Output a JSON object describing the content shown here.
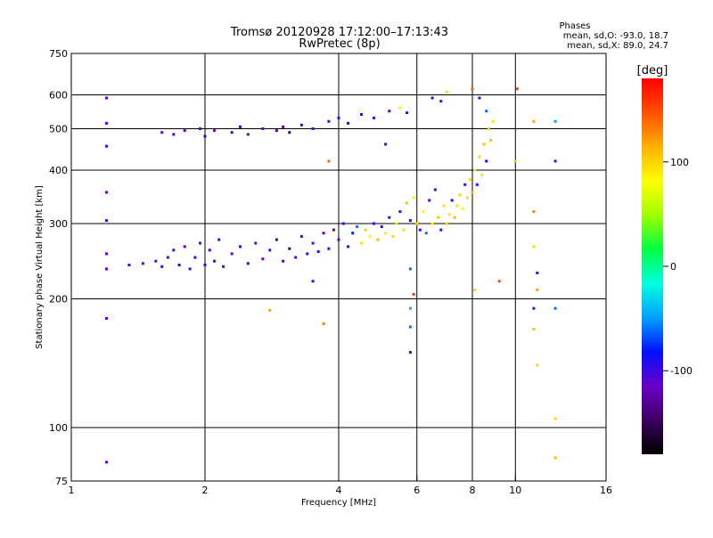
{
  "chart_data": {
    "type": "scatter",
    "title": "Tromsø 20120928 17:12:00–17:13:43",
    "subtitle": "RwPretec (8p)",
    "xlabel": "Frequency [MHz]",
    "ylabel": "Stationary phase Virtual Height [km]",
    "x_scale": "log2",
    "y_scale": "log",
    "xlim": [
      1,
      16
    ],
    "ylim": [
      75,
      750
    ],
    "x_ticks": [
      1,
      2,
      4,
      6,
      8,
      10,
      16
    ],
    "x_tick_labels": [
      "1",
      "2",
      "4",
      "6",
      "8",
      "10",
      "16"
    ],
    "y_ticks": [
      75,
      100,
      200,
      300,
      400,
      500,
      600,
      750
    ],
    "y_tick_labels": [
      "75",
      "100",
      "200",
      "300",
      "400",
      "500",
      "600",
      "750"
    ],
    "grid": true,
    "phases_box": {
      "title": "Phases",
      "line_o": "mean, sd,O:  -93.0,  18.7",
      "line_x": "mean, sd,X:   89.0,  24.7"
    },
    "colorbar": {
      "label": "[deg]",
      "range": [
        -180,
        180
      ],
      "ticks": [
        100,
        0,
        -100
      ],
      "tick_labels": [
        "100",
        "0",
        "-100"
      ],
      "colors": [
        "#000000",
        "#3b0060",
        "#6a00c8",
        "#0010ff",
        "#00a0ff",
        "#00ffe0",
        "#00ff40",
        "#a0ff00",
        "#ffff00",
        "#ffb000",
        "#ff5000",
        "#ff0000"
      ]
    },
    "series": [
      {
        "values": [
          {
            "x": 1.2,
            "y": 590,
            "p": -110
          },
          {
            "x": 1.2,
            "y": 515,
            "p": -105
          },
          {
            "x": 1.2,
            "y": 455,
            "p": -100
          },
          {
            "x": 1.2,
            "y": 355,
            "p": -110
          },
          {
            "x": 1.2,
            "y": 305,
            "p": -100
          },
          {
            "x": 1.2,
            "y": 255,
            "p": -110
          },
          {
            "x": 1.2,
            "y": 235,
            "p": -105
          },
          {
            "x": 1.2,
            "y": 180,
            "p": -110
          },
          {
            "x": 1.2,
            "y": 83,
            "p": -105
          },
          {
            "x": 1.35,
            "y": 240,
            "p": -100
          },
          {
            "x": 1.45,
            "y": 242,
            "p": -115
          },
          {
            "x": 1.55,
            "y": 245,
            "p": -110
          },
          {
            "x": 1.6,
            "y": 238,
            "p": -90
          },
          {
            "x": 1.65,
            "y": 250,
            "p": -120
          },
          {
            "x": 1.7,
            "y": 260,
            "p": -100
          },
          {
            "x": 1.75,
            "y": 240,
            "p": -95
          },
          {
            "x": 1.8,
            "y": 265,
            "p": -115
          },
          {
            "x": 1.85,
            "y": 235,
            "p": -105
          },
          {
            "x": 1.9,
            "y": 250,
            "p": -90
          },
          {
            "x": 1.95,
            "y": 270,
            "p": -110
          },
          {
            "x": 2.0,
            "y": 240,
            "p": -100
          },
          {
            "x": 2.05,
            "y": 260,
            "p": -120
          },
          {
            "x": 2.1,
            "y": 245,
            "p": -90
          },
          {
            "x": 2.15,
            "y": 275,
            "p": -105
          },
          {
            "x": 2.2,
            "y": 238,
            "p": -110
          },
          {
            "x": 2.3,
            "y": 255,
            "p": -115
          },
          {
            "x": 2.4,
            "y": 265,
            "p": -100
          },
          {
            "x": 2.5,
            "y": 242,
            "p": -95
          },
          {
            "x": 2.6,
            "y": 270,
            "p": -110
          },
          {
            "x": 2.7,
            "y": 248,
            "p": -120
          },
          {
            "x": 2.8,
            "y": 260,
            "p": -105
          },
          {
            "x": 2.9,
            "y": 275,
            "p": -90
          },
          {
            "x": 3.0,
            "y": 245,
            "p": -130
          },
          {
            "x": 3.1,
            "y": 262,
            "p": -140
          },
          {
            "x": 3.2,
            "y": 250,
            "p": -110
          },
          {
            "x": 3.3,
            "y": 280,
            "p": -100
          },
          {
            "x": 3.4,
            "y": 255,
            "p": -120
          },
          {
            "x": 3.5,
            "y": 270,
            "p": -105
          },
          {
            "x": 3.6,
            "y": 258,
            "p": -95
          },
          {
            "x": 3.7,
            "y": 285,
            "p": -110
          },
          {
            "x": 3.8,
            "y": 262,
            "p": -100
          },
          {
            "x": 3.9,
            "y": 290,
            "p": -115
          },
          {
            "x": 4.0,
            "y": 275,
            "p": -105
          },
          {
            "x": 4.1,
            "y": 300,
            "p": -110
          },
          {
            "x": 4.2,
            "y": 265,
            "p": -90
          },
          {
            "x": 4.3,
            "y": 285,
            "p": -80
          },
          {
            "x": 4.4,
            "y": 295,
            "p": -60
          },
          {
            "x": 4.5,
            "y": 270,
            "p": 95
          },
          {
            "x": 4.6,
            "y": 290,
            "p": 100
          },
          {
            "x": 4.7,
            "y": 280,
            "p": 85
          },
          {
            "x": 4.8,
            "y": 300,
            "p": -100
          },
          {
            "x": 4.9,
            "y": 275,
            "p": 110
          },
          {
            "x": 5.0,
            "y": 295,
            "p": -90
          },
          {
            "x": 5.1,
            "y": 285,
            "p": 90
          },
          {
            "x": 5.2,
            "y": 310,
            "p": -110
          },
          {
            "x": 5.3,
            "y": 280,
            "p": 100
          },
          {
            "x": 5.4,
            "y": 300,
            "p": 70
          },
          {
            "x": 5.5,
            "y": 320,
            "p": -100
          },
          {
            "x": 5.6,
            "y": 290,
            "p": 95
          },
          {
            "x": 5.7,
            "y": 335,
            "p": 110
          },
          {
            "x": 5.8,
            "y": 305,
            "p": -80
          },
          {
            "x": 5.9,
            "y": 345,
            "p": 90
          },
          {
            "x": 6.0,
            "y": 300,
            "p": 100
          },
          {
            "x": 6.1,
            "y": 290,
            "p": -100
          },
          {
            "x": 6.2,
            "y": 320,
            "p": 85
          },
          {
            "x": 6.3,
            "y": 285,
            "p": -60
          },
          {
            "x": 6.4,
            "y": 340,
            "p": -110
          },
          {
            "x": 6.5,
            "y": 300,
            "p": 90
          },
          {
            "x": 6.6,
            "y": 360,
            "p": -100
          },
          {
            "x": 6.7,
            "y": 310,
            "p": 105
          },
          {
            "x": 6.8,
            "y": 290,
            "p": -90
          },
          {
            "x": 6.9,
            "y": 330,
            "p": 95
          },
          {
            "x": 7.0,
            "y": 300,
            "p": 100
          },
          {
            "x": 7.1,
            "y": 315,
            "p": 90
          },
          {
            "x": 7.2,
            "y": 340,
            "p": -100
          },
          {
            "x": 7.3,
            "y": 310,
            "p": 110
          },
          {
            "x": 7.4,
            "y": 330,
            "p": 95
          },
          {
            "x": 7.5,
            "y": 350,
            "p": 100
          },
          {
            "x": 7.6,
            "y": 325,
            "p": 85
          },
          {
            "x": 7.7,
            "y": 370,
            "p": -105
          },
          {
            "x": 7.8,
            "y": 345,
            "p": 95
          },
          {
            "x": 7.9,
            "y": 380,
            "p": 100
          },
          {
            "x": 8.0,
            "y": 355,
            "p": 110
          },
          {
            "x": 8.1,
            "y": 400,
            "p": 90
          },
          {
            "x": 8.2,
            "y": 370,
            "p": -100
          },
          {
            "x": 8.3,
            "y": 430,
            "p": 100
          },
          {
            "x": 8.4,
            "y": 390,
            "p": 95
          },
          {
            "x": 8.5,
            "y": 460,
            "p": 105
          },
          {
            "x": 8.6,
            "y": 420,
            "p": -90
          },
          {
            "x": 8.7,
            "y": 500,
            "p": 100
          },
          {
            "x": 8.8,
            "y": 470,
            "p": 110
          },
          {
            "x": 8.9,
            "y": 520,
            "p": 95
          },
          {
            "x": 8.6,
            "y": 550,
            "p": -60
          },
          {
            "x": 8.3,
            "y": 590,
            "p": -100
          },
          {
            "x": 8.0,
            "y": 620,
            "p": 140
          },
          {
            "x": 1.6,
            "y": 490,
            "p": -110
          },
          {
            "x": 1.7,
            "y": 485,
            "p": -100
          },
          {
            "x": 1.8,
            "y": 495,
            "p": -115
          },
          {
            "x": 1.95,
            "y": 500,
            "p": -100
          },
          {
            "x": 2.0,
            "y": 480,
            "p": -90
          },
          {
            "x": 2.1,
            "y": 495,
            "p": -110
          },
          {
            "x": 2.3,
            "y": 490,
            "p": -105
          },
          {
            "x": 2.4,
            "y": 505,
            "p": -100
          },
          {
            "x": 2.5,
            "y": 485,
            "p": -120
          },
          {
            "x": 2.7,
            "y": 500,
            "p": -110
          },
          {
            "x": 2.9,
            "y": 495,
            "p": -100
          },
          {
            "x": 3.0,
            "y": 505,
            "p": -130
          },
          {
            "x": 3.1,
            "y": 490,
            "p": -140
          },
          {
            "x": 3.3,
            "y": 510,
            "p": -100
          },
          {
            "x": 3.5,
            "y": 500,
            "p": -110
          },
          {
            "x": 3.8,
            "y": 520,
            "p": -105
          },
          {
            "x": 4.0,
            "y": 530,
            "p": -100
          },
          {
            "x": 4.2,
            "y": 515,
            "p": -90
          },
          {
            "x": 4.5,
            "y": 540,
            "p": -100
          },
          {
            "x": 4.8,
            "y": 530,
            "p": -110
          },
          {
            "x": 5.2,
            "y": 550,
            "p": -100
          },
          {
            "x": 5.5,
            "y": 560,
            "p": 90
          },
          {
            "x": 5.7,
            "y": 545,
            "p": -100
          },
          {
            "x": 6.5,
            "y": 590,
            "p": -100
          },
          {
            "x": 6.8,
            "y": 580,
            "p": -110
          },
          {
            "x": 7.0,
            "y": 610,
            "p": 60
          },
          {
            "x": 3.8,
            "y": 420,
            "p": 140
          },
          {
            "x": 3.7,
            "y": 175,
            "p": 130
          },
          {
            "x": 2.8,
            "y": 188,
            "p": 120
          },
          {
            "x": 3.5,
            "y": 220,
            "p": -100
          },
          {
            "x": 5.1,
            "y": 460,
            "p": -100
          },
          {
            "x": 5.8,
            "y": 235,
            "p": -60
          },
          {
            "x": 5.9,
            "y": 205,
            "p": 160
          },
          {
            "x": 5.8,
            "y": 190,
            "p": -40
          },
          {
            "x": 5.8,
            "y": 172,
            "p": -60
          },
          {
            "x": 5.8,
            "y": 150,
            "p": -110
          },
          {
            "x": 10.0,
            "y": 420,
            "p": 100
          },
          {
            "x": 10.1,
            "y": 620,
            "p": 150
          },
          {
            "x": 11.0,
            "y": 320,
            "p": 130
          },
          {
            "x": 11.0,
            "y": 265,
            "p": 100
          },
          {
            "x": 11.2,
            "y": 230,
            "p": -80
          },
          {
            "x": 11.2,
            "y": 210,
            "p": 120
          },
          {
            "x": 11.0,
            "y": 190,
            "p": -100
          },
          {
            "x": 11.0,
            "y": 170,
            "p": 110
          },
          {
            "x": 11.2,
            "y": 140,
            "p": 100
          },
          {
            "x": 11.0,
            "y": 520,
            "p": 120
          },
          {
            "x": 12.3,
            "y": 520,
            "p": -50
          },
          {
            "x": 12.3,
            "y": 420,
            "p": -100
          },
          {
            "x": 12.3,
            "y": 190,
            "p": -60
          },
          {
            "x": 12.3,
            "y": 105,
            "p": 100
          },
          {
            "x": 12.3,
            "y": 85,
            "p": 110
          },
          {
            "x": 9.2,
            "y": 220,
            "p": 150
          },
          {
            "x": 8.1,
            "y": 210,
            "p": 100
          }
        ]
      }
    ]
  }
}
